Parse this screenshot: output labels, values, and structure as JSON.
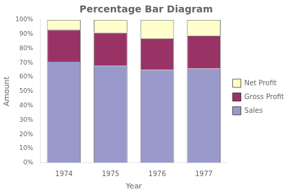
{
  "chart_data": {
    "type": "bar",
    "title": "Percentage Bar Diagram",
    "x_label": "Year",
    "y_label": "Amount",
    "categories": [
      "1974",
      "1975",
      "1976",
      "1977"
    ],
    "series": [
      {
        "name": "Sales",
        "color": "#9999CC",
        "values": [
          71,
          68,
          65,
          66
        ]
      },
      {
        "name": "Gross Profit",
        "color": "#993366",
        "values": [
          22,
          23,
          22,
          23
        ]
      },
      {
        "name": "Net Profit",
        "color": "#FFFFCC",
        "values": [
          7,
          9,
          13,
          11
        ]
      }
    ],
    "stacked": true,
    "ylim": [
      0,
      100
    ],
    "yticks": [
      {
        "value": 0,
        "label": "0%"
      },
      {
        "value": 10,
        "label": "10%"
      },
      {
        "value": 20,
        "label": "20%"
      },
      {
        "value": 30,
        "label": "30%"
      },
      {
        "value": 40,
        "label": "40%"
      },
      {
        "value": 50,
        "label": "50%"
      },
      {
        "value": 60,
        "label": "60%"
      },
      {
        "value": 70,
        "label": "70%"
      },
      {
        "value": 80,
        "label": "80%"
      },
      {
        "value": 90,
        "label": "90%"
      },
      {
        "value": 100,
        "label": "100%"
      }
    ],
    "grid": false,
    "legend": "right"
  }
}
